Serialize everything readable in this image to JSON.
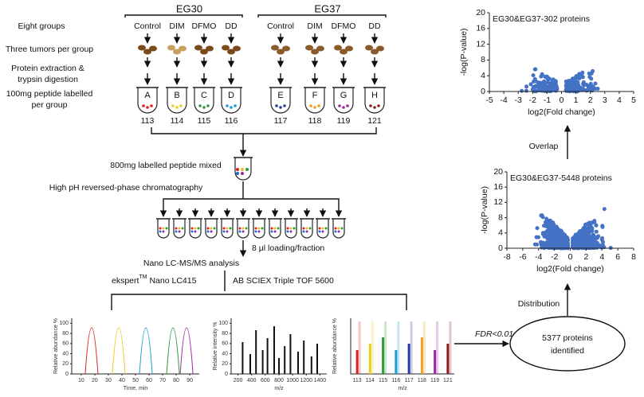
{
  "groups": [
    {
      "title": "EG30",
      "treatments": [
        "Control",
        "DIM",
        "DFMO",
        "DD"
      ],
      "tubes": [
        "A",
        "B",
        "C",
        "D"
      ],
      "tags": [
        "113",
        "114",
        "115",
        "116"
      ]
    },
    {
      "title": "EG37",
      "treatments": [
        "Control",
        "DIM",
        "DFMO",
        "DD"
      ],
      "tubes": [
        "E",
        "F",
        "G",
        "H"
      ],
      "tags": [
        "117",
        "118",
        "119",
        "121"
      ]
    }
  ],
  "row_labels": {
    "groups": "Eight groups",
    "tumors": "Three tumors per group",
    "extraction": [
      "Protein extraction &",
      "trypsin digestion"
    ],
    "labelling": [
      "100mg peptide labelled",
      "per group"
    ]
  },
  "steps": {
    "mixed": "800mg labelled peptide mixed",
    "chromatography": "High pH reversed-phase chromatography",
    "loading": "8 μl loading/fraction",
    "analysis": "Nano LC-MS/MS analysis",
    "lc": {
      "name": "ekspert",
      "sup": "TM",
      "model": " Nano LC415"
    },
    "ms": "AB SCIEX Triple TOF 5600",
    "fdr": "FDR<0.01",
    "result": [
      "5377 proteins",
      "identified"
    ],
    "distribution": "Distribution",
    "overlap": "Overlap"
  },
  "mini_charts": [
    {
      "y_label": "Relative abundance %",
      "x_label": "Time, min",
      "xlim": [
        3,
        97
      ],
      "xticks": [
        10,
        20,
        30,
        40,
        50,
        60,
        70,
        80,
        90
      ],
      "ylim": [
        0,
        110
      ],
      "yticks": [
        0,
        20,
        40,
        60,
        80,
        100
      ]
    },
    {
      "y_label": "Relative intensity %",
      "x_label": "m/z",
      "xlim": [
        100,
        1500
      ],
      "xticks": [
        200,
        400,
        600,
        800,
        1000,
        1200,
        1400
      ],
      "ylim": [
        0,
        110
      ],
      "yticks": [
        0,
        20,
        40,
        60,
        80,
        100
      ]
    },
    {
      "y_label": "Relative abundance %",
      "x_label": "m/z",
      "categories": [
        "113",
        "114",
        "115",
        "116",
        "117",
        "118",
        "119",
        "121"
      ]
    }
  ],
  "volcano_plots": [
    {
      "title": "EG30&EG37-302 proteins",
      "x_label": "log2(Fold change)",
      "y_label": "-log(P-value)",
      "xlim": [
        -5,
        5
      ],
      "xticks": [
        -5,
        -4,
        -3,
        -2,
        -1,
        0,
        1,
        2,
        3,
        4,
        5
      ],
      "ylim": [
        0,
        20
      ],
      "yticks": [
        0,
        4,
        8,
        12,
        16,
        20
      ]
    },
    {
      "title": "EG30&EG37-5448 proteins",
      "x_label": "log2(Fold change)",
      "y_label": "-log(P-value)",
      "xlim": [
        -8,
        8
      ],
      "xticks": [
        -8,
        -6,
        -4,
        -2,
        0,
        2,
        4,
        6,
        8
      ],
      "ylim": [
        0,
        20
      ],
      "yticks": [
        0,
        4,
        8,
        12,
        16,
        20
      ]
    }
  ]
}
